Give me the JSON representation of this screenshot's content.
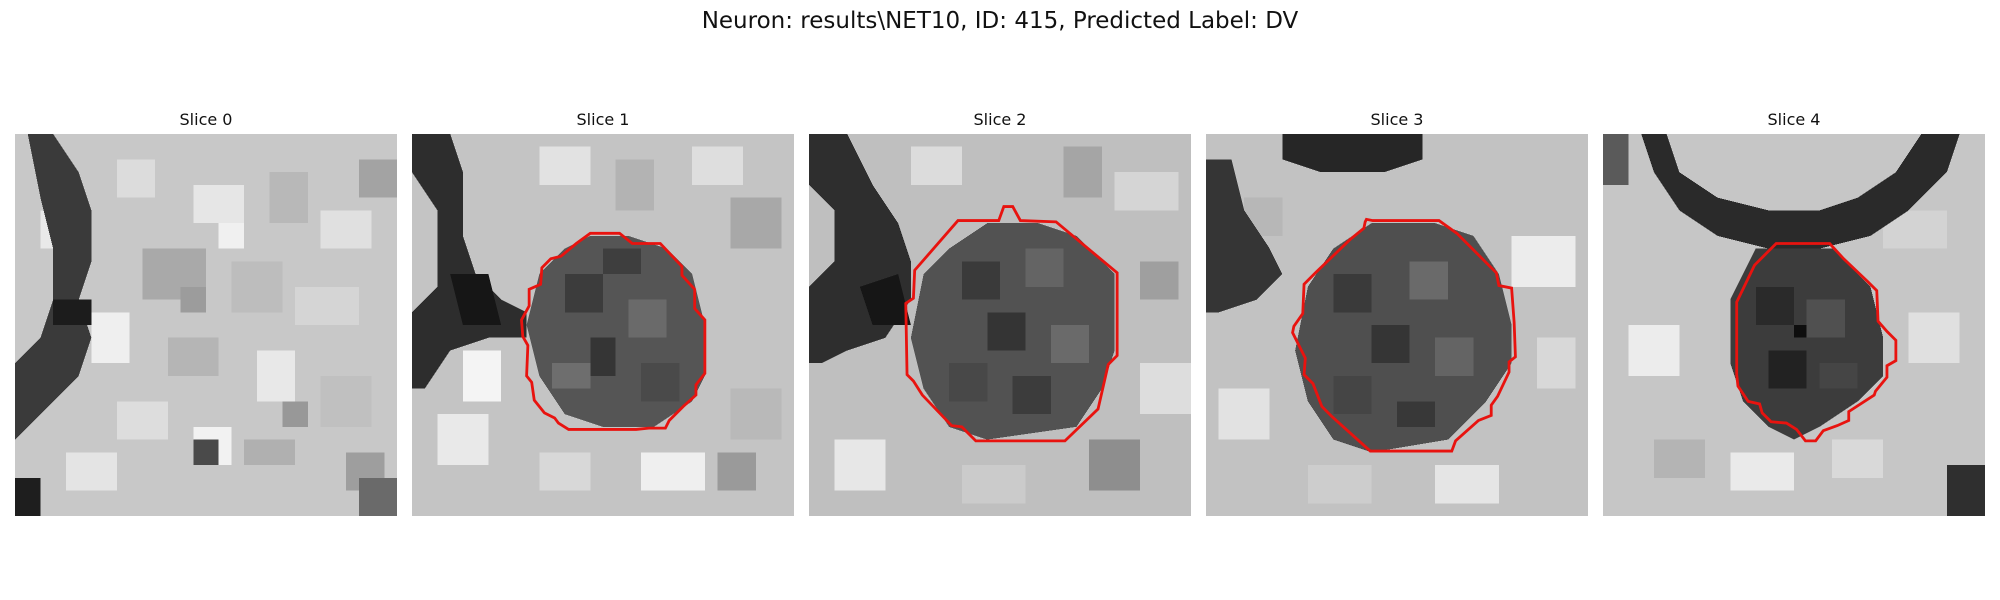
{
  "figure": {
    "title": "Neuron: results\\NET10, ID: 415, Predicted Label: DV"
  },
  "colors": {
    "contour": "#e8130f",
    "background": "#ffffff"
  },
  "panels": [
    {
      "title": "Slice 0",
      "has_contour": false
    },
    {
      "title": "Slice 1",
      "has_contour": true
    },
    {
      "title": "Slice 2",
      "has_contour": true
    },
    {
      "title": "Slice 3",
      "has_contour": true
    },
    {
      "title": "Slice 4",
      "has_contour": true
    }
  ]
}
